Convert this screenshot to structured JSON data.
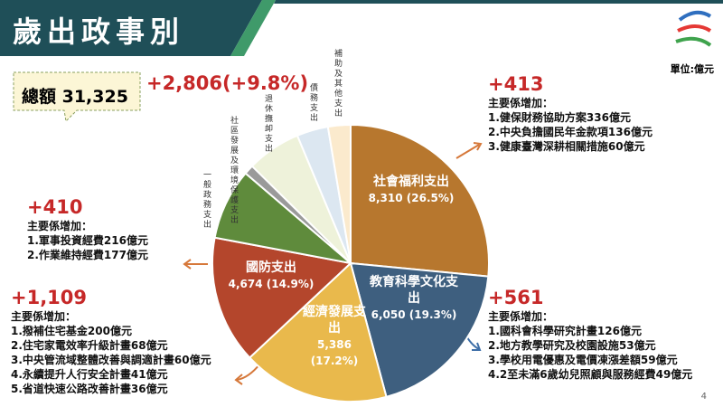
{
  "header": {
    "title": "歲出政事別",
    "unit": "單位:億元",
    "page": "4"
  },
  "total": {
    "label": "總額 31,325",
    "change": "+2,806(+9.8%)"
  },
  "chart_data": {
    "type": "pie",
    "categories": [
      "社會福利支出",
      "教育科學文化支出",
      "經濟發展支出",
      "國防支出",
      "一般政務支出",
      "社區發展及環境保護支出",
      "退休撫卹支出",
      "債務支出",
      "補助及其他支出"
    ],
    "values": [
      8310,
      6050,
      5386,
      4674,
      2600,
      350,
      1980,
      1150,
      825
    ],
    "value_labels": [
      "8,310 (26.5%)",
      "6,050 (19.3%)",
      "5,386 (17.2%)",
      "4,674 (14.9%)",
      null,
      null,
      null,
      null,
      null
    ],
    "colors": [
      "#b7772e",
      "#3e5f7f",
      "#e9b94c",
      "#b4462c",
      "#5f8b3c",
      "#9a9a9a",
      "#eef2da",
      "#dce7f1",
      "#fbeacd"
    ]
  },
  "notes": [
    {
      "change": "+413",
      "lead": "主要係增加：",
      "items": [
        "1.健保財務協助方案336億元",
        "2.中央負擔國民年金款項136億元",
        "3.健康臺灣深耕相關措施60億元"
      ]
    },
    {
      "change": "+561",
      "lead": "主要係增加：",
      "items": [
        "1.國科會科學研究計畫126億元",
        "2.地方教學研究及校園設施53億元",
        "3.學校用電優惠及電價凍漲差額59億元",
        "4.2至未滿6歲幼兒照顧與服務經費49億元"
      ]
    },
    {
      "change": "+1,109",
      "lead": "主要係增加：",
      "items": [
        "1.撥補住宅基金200億元",
        "2.住宅家電效率升級計畫68億元",
        "3.中央管流域整體改善與調適計畫60億元",
        "4.永續提升人行安全計畫41億元",
        "5.省道快速公路改善計畫36億元"
      ]
    },
    {
      "change": "+410",
      "lead": "主要係增加：",
      "items": [
        "1.軍事投資經費216億元",
        "2.作業維持經費177億元"
      ]
    }
  ]
}
